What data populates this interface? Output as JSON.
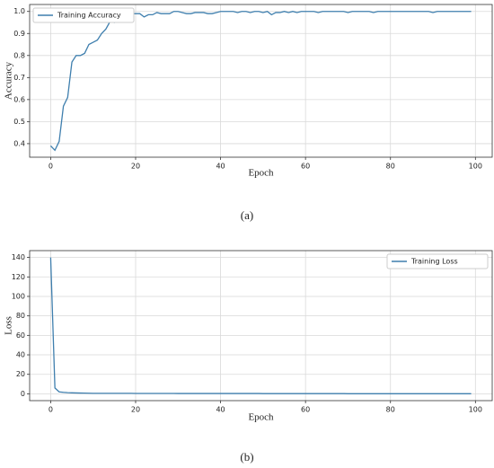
{
  "chart_data": [
    {
      "type": "line",
      "caption": "(a)",
      "xlabel": "Epoch",
      "ylabel": "Accuracy",
      "grid": true,
      "legend": "upper left",
      "x": [
        0,
        1,
        2,
        3,
        4,
        5,
        6,
        7,
        8,
        9,
        10,
        11,
        12,
        13,
        14,
        15,
        16,
        17,
        18,
        19,
        20,
        21,
        22,
        23,
        24,
        25,
        26,
        27,
        28,
        29,
        30,
        31,
        32,
        33,
        34,
        35,
        36,
        37,
        38,
        39,
        40,
        41,
        42,
        43,
        44,
        45,
        46,
        47,
        48,
        49,
        50,
        51,
        52,
        53,
        54,
        55,
        56,
        57,
        58,
        59,
        60,
        61,
        62,
        63,
        64,
        65,
        66,
        67,
        68,
        69,
        70,
        71,
        72,
        73,
        74,
        75,
        76,
        77,
        78,
        79,
        80,
        81,
        82,
        83,
        84,
        85,
        86,
        87,
        88,
        89,
        90,
        91,
        92,
        93,
        94,
        95,
        96,
        97,
        98,
        99
      ],
      "series": [
        {
          "name": "Training Accuracy",
          "color": "#3f7fae",
          "values": [
            0.39,
            0.37,
            0.41,
            0.57,
            0.61,
            0.77,
            0.8,
            0.8,
            0.81,
            0.85,
            0.86,
            0.87,
            0.9,
            0.92,
            0.955,
            0.95,
            0.97,
            0.985,
            0.98,
            0.99,
            0.99,
            0.99,
            0.975,
            0.985,
            0.985,
            0.995,
            0.99,
            0.99,
            0.99,
            1.0,
            1.0,
            0.995,
            0.99,
            0.99,
            0.995,
            0.995,
            0.995,
            0.99,
            0.99,
            0.995,
            1.0,
            1.0,
            1.0,
            1.0,
            0.995,
            1.0,
            1.0,
            0.995,
            1.0,
            1.0,
            0.995,
            1.0,
            0.985,
            0.995,
            0.995,
            1.0,
            0.995,
            1.0,
            0.995,
            1.0,
            1.0,
            1.0,
            1.0,
            0.995,
            1.0,
            1.0,
            1.0,
            1.0,
            1.0,
            1.0,
            0.995,
            1.0,
            1.0,
            1.0,
            1.0,
            1.0,
            0.995,
            1.0,
            1.0,
            1.0,
            1.0,
            1.0,
            1.0,
            1.0,
            1.0,
            1.0,
            1.0,
            1.0,
            1.0,
            1.0,
            0.995,
            1.0,
            1.0,
            1.0,
            1.0,
            1.0,
            1.0,
            1.0,
            1.0,
            1.0
          ]
        }
      ],
      "xlim": [
        -4.95,
        103.95
      ],
      "xticks": [
        0,
        20,
        40,
        60,
        80,
        100
      ],
      "ylim": [
        0.3385,
        1.0315
      ],
      "yticks": [
        0.4,
        0.5,
        0.6,
        0.7,
        0.8,
        0.9,
        {
          "value": 1,
          "label": "1.0"
        }
      ]
    },
    {
      "type": "line",
      "caption": "(b)",
      "xlabel": "Epoch",
      "ylabel": "Loss",
      "grid": true,
      "legend": "upper right",
      "x": [
        0,
        1,
        2,
        3,
        4,
        5,
        6,
        7,
        8,
        9,
        10,
        11,
        12,
        13,
        14,
        15,
        16,
        17,
        18,
        19,
        20,
        21,
        22,
        23,
        24,
        25,
        26,
        27,
        28,
        29,
        30,
        31,
        32,
        33,
        34,
        35,
        36,
        37,
        38,
        39,
        40,
        41,
        42,
        43,
        44,
        45,
        46,
        47,
        48,
        49,
        50,
        51,
        52,
        53,
        54,
        55,
        56,
        57,
        58,
        59,
        60,
        61,
        62,
        63,
        64,
        65,
        66,
        67,
        68,
        69,
        70,
        71,
        72,
        73,
        74,
        75,
        76,
        77,
        78,
        79,
        80,
        81,
        82,
        83,
        84,
        85,
        86,
        87,
        88,
        89,
        90,
        91,
        92,
        93,
        94,
        95,
        96,
        97,
        98,
        99
      ],
      "series": [
        {
          "name": "Training Loss",
          "color": "#3f7fae",
          "values": [
            140,
            6,
            2,
            1.5,
            1.2,
            1,
            0.9,
            0.8,
            0.7,
            0.6,
            0.5,
            0.5,
            0.5,
            0.5,
            0.5,
            0.5,
            0.5,
            0.5,
            0.5,
            0.5,
            0.4,
            0.4,
            0.4,
            0.4,
            0.4,
            0.4,
            0.4,
            0.4,
            0.4,
            0.4,
            0.3,
            0.3,
            0.3,
            0.3,
            0.3,
            0.3,
            0.3,
            0.3,
            0.3,
            0.3,
            0.3,
            0.3,
            0.3,
            0.3,
            0.3,
            0.3,
            0.3,
            0.3,
            0.3,
            0.3,
            0.2,
            0.2,
            0.2,
            0.2,
            0.2,
            0.2,
            0.2,
            0.2,
            0.2,
            0.2,
            0.2,
            0.2,
            0.2,
            0.2,
            0.2,
            0.2,
            0.2,
            0.2,
            0.2,
            0.2,
            0.1,
            0.1,
            0.1,
            0.1,
            0.1,
            0.1,
            0.1,
            0.1,
            0.1,
            0.1,
            0.1,
            0.1,
            0.1,
            0.1,
            0.1,
            0.1,
            0.1,
            0.1,
            0.1,
            0.1,
            0.1,
            0.1,
            0.1,
            0.1,
            0.1,
            0.1,
            0.1,
            0.1,
            0.1,
            0.1
          ]
        }
      ],
      "xlim": [
        -4.95,
        103.95
      ],
      "xticks": [
        0,
        20,
        40,
        60,
        80,
        100
      ],
      "ylim": [
        -7,
        147
      ],
      "yticks": [
        0,
        20,
        40,
        60,
        80,
        100,
        120,
        140
      ]
    }
  ]
}
